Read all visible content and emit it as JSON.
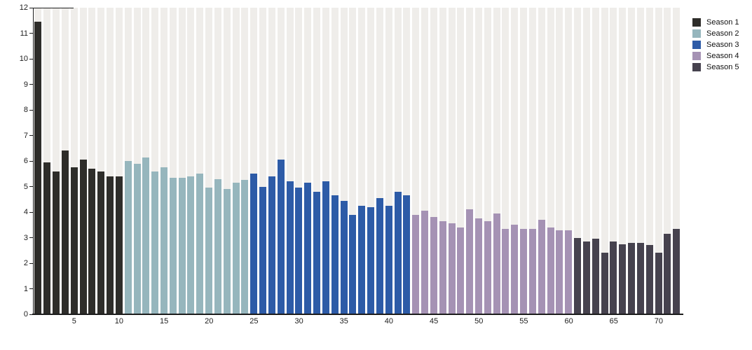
{
  "chart_data": {
    "type": "bar",
    "title": "",
    "xlabel": "",
    "ylabel": "",
    "x_unit": "episode",
    "x_start": 1,
    "x_end": 72,
    "ylim": [
      0,
      12
    ],
    "yticks": [
      0,
      1,
      2,
      3,
      4,
      5,
      6,
      7,
      8,
      9,
      10,
      11,
      12
    ],
    "xticks": [
      5,
      10,
      15,
      20,
      25,
      30,
      35,
      40,
      45,
      50,
      55,
      60,
      65,
      70
    ],
    "grid": "off",
    "background_stripes": true,
    "stripe_color": "#efedea",
    "axis_color": "#1c1c1c",
    "legend_position": "top-right",
    "series": [
      {
        "name": "Season 1",
        "color": "#2e2d2a",
        "episode_start": 1,
        "values": [
          11.45,
          5.95,
          5.6,
          6.4,
          5.75,
          6.05,
          5.7,
          5.6,
          5.4,
          5.4
        ]
      },
      {
        "name": "Season 2",
        "color": "#96b6bd",
        "episode_start": 11,
        "values": [
          6.0,
          5.9,
          6.15,
          5.6,
          5.75,
          5.35,
          5.35,
          5.4,
          5.5,
          4.95,
          5.3,
          4.9,
          5.15,
          5.25
        ]
      },
      {
        "name": "Season 3",
        "color": "#2d5ba7",
        "episode_start": 25,
        "values": [
          5.5,
          5.0,
          5.4,
          6.05,
          5.2,
          4.95,
          5.15,
          4.8,
          5.2,
          4.65,
          4.45,
          3.9,
          4.25,
          4.2,
          4.55,
          4.25,
          4.8,
          4.65
        ]
      },
      {
        "name": "Season 4",
        "color": "#a592b4",
        "episode_start": 43,
        "values": [
          3.9,
          4.05,
          3.8,
          3.65,
          3.55,
          3.4,
          4.1,
          3.75,
          3.65,
          3.95,
          3.35,
          3.5,
          3.35,
          3.35,
          3.7,
          3.4,
          3.3,
          3.3
        ]
      },
      {
        "name": "Season 5",
        "color": "#46424e",
        "episode_start": 61,
        "values": [
          3.0,
          2.85,
          2.95,
          2.4,
          2.85,
          2.75,
          2.8,
          2.8,
          2.7,
          2.4,
          3.15,
          3.35
        ]
      }
    ]
  }
}
